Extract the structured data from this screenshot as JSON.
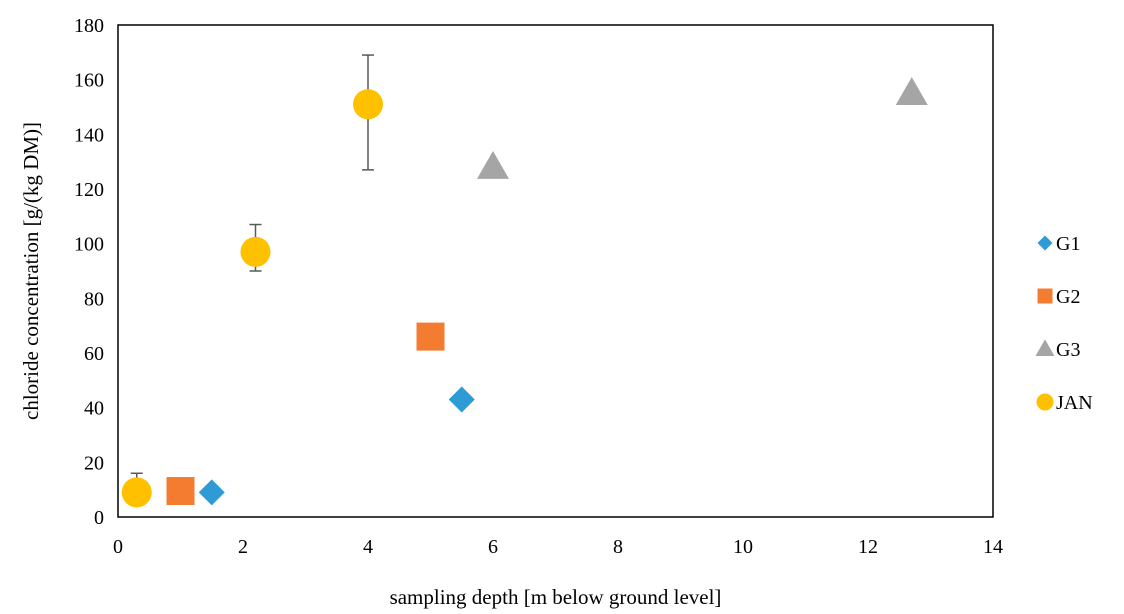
{
  "chart_data": {
    "type": "scatter",
    "title": "",
    "xlabel": "sampling depth [m below ground level]",
    "ylabel": "chloride concentration [g/(kg DM)]",
    "xlim": [
      0,
      14
    ],
    "ylim": [
      0,
      180
    ],
    "x_ticks": [
      0,
      2,
      4,
      6,
      8,
      10,
      12,
      14
    ],
    "y_ticks": [
      0,
      20,
      40,
      60,
      80,
      100,
      120,
      140,
      160,
      180
    ],
    "grid": false,
    "legend_position": "right",
    "series": [
      {
        "name": "G1",
        "marker": "diamond",
        "color": "#2E9BD6",
        "points": [
          {
            "x": 1.5,
            "y": 9
          },
          {
            "x": 5.5,
            "y": 43
          }
        ]
      },
      {
        "name": "G2",
        "marker": "square",
        "color": "#F47C30",
        "points": [
          {
            "x": 1.0,
            "y": 9.5
          },
          {
            "x": 5.0,
            "y": 66
          }
        ]
      },
      {
        "name": "G3",
        "marker": "triangle",
        "color": "#A5A5A5",
        "points": [
          {
            "x": 6.0,
            "y": 128
          },
          {
            "x": 12.7,
            "y": 155
          }
        ]
      },
      {
        "name": "JAN",
        "marker": "circle",
        "color": "#FFC000",
        "points": [
          {
            "x": 0.3,
            "y": 9,
            "err_low": 0,
            "err_high": 7
          },
          {
            "x": 2.2,
            "y": 97,
            "err_low": 7,
            "err_high": 10
          },
          {
            "x": 4.0,
            "y": 151,
            "err_low": 24,
            "err_high": 18
          }
        ]
      }
    ]
  }
}
